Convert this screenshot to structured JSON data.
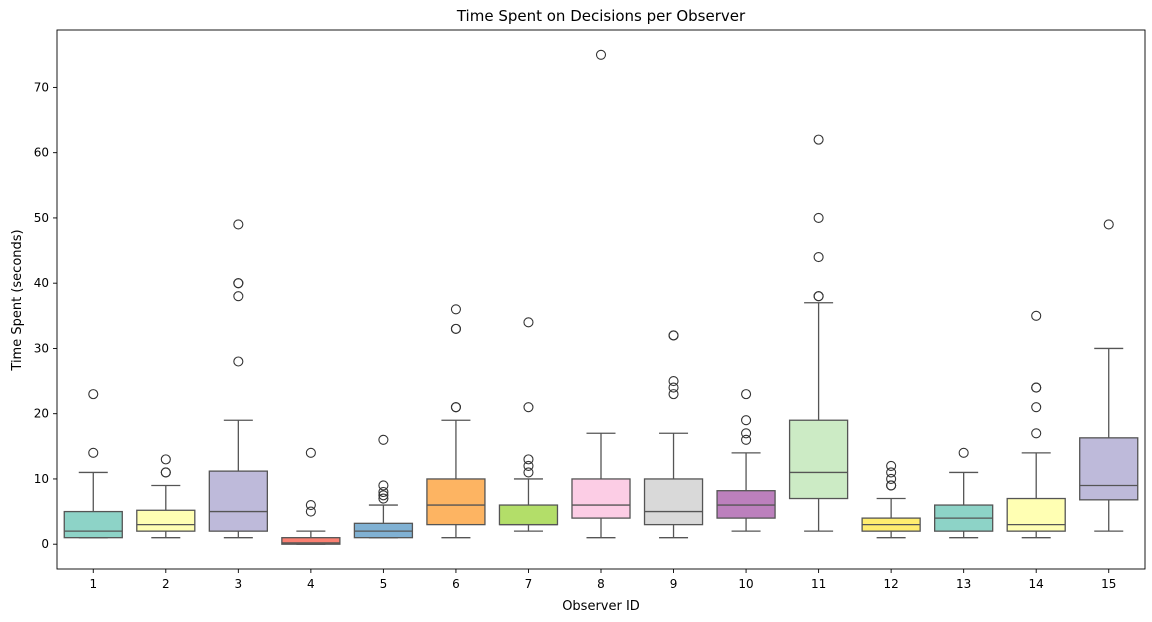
{
  "chart_data": {
    "type": "box",
    "title": "Time Spent on Decisions per Observer",
    "xlabel": "Observer ID",
    "ylabel": "Time Spent (seconds)",
    "ylim": [
      -3.8,
      78.8
    ],
    "yticks": [
      0,
      10,
      20,
      30,
      40,
      50,
      60,
      70
    ],
    "grid": false,
    "categories": [
      "1",
      "2",
      "3",
      "4",
      "5",
      "6",
      "7",
      "8",
      "9",
      "10",
      "11",
      "12",
      "13",
      "14",
      "15"
    ],
    "boxes": [
      {
        "category": "1",
        "whisker_low": 1,
        "q1": 1,
        "median": 2,
        "q3": 5,
        "whisker_high": 11,
        "outliers": [
          14,
          23
        ],
        "color": "#8dd3c7"
      },
      {
        "category": "2",
        "whisker_low": 1,
        "q1": 2,
        "median": 3,
        "q3": 5.2,
        "whisker_high": 9,
        "outliers": [
          11,
          11,
          13
        ],
        "color": "#ffffb3"
      },
      {
        "category": "3",
        "whisker_low": 1,
        "q1": 2,
        "median": 5,
        "q3": 11.2,
        "whisker_high": 19,
        "outliers": [
          28,
          38,
          40,
          40,
          49
        ],
        "color": "#bebada"
      },
      {
        "category": "4",
        "whisker_low": 0,
        "q1": 0,
        "median": 0.2,
        "q3": 1,
        "whisker_high": 2,
        "outliers": [
          5,
          6,
          14
        ],
        "color": "#fb8072"
      },
      {
        "category": "5",
        "whisker_low": 1,
        "q1": 1,
        "median": 2,
        "q3": 3.2,
        "whisker_high": 6,
        "outliers": [
          7,
          7.5,
          8,
          9,
          16
        ],
        "color": "#80b1d3"
      },
      {
        "category": "6",
        "whisker_low": 1,
        "q1": 3,
        "median": 6,
        "q3": 10,
        "whisker_high": 19,
        "outliers": [
          21,
          21,
          33,
          33,
          36
        ],
        "color": "#fdb462"
      },
      {
        "category": "7",
        "whisker_low": 2,
        "q1": 3,
        "median": 3,
        "q3": 6,
        "whisker_high": 10,
        "outliers": [
          11,
          12,
          13,
          21,
          34
        ],
        "color": "#b3de69"
      },
      {
        "category": "8",
        "whisker_low": 1,
        "q1": 4,
        "median": 6,
        "q3": 10,
        "whisker_high": 17,
        "outliers": [
          75
        ],
        "color": "#fccde5"
      },
      {
        "category": "9",
        "whisker_low": 1,
        "q1": 3,
        "median": 5,
        "q3": 10,
        "whisker_high": 17,
        "outliers": [
          23,
          24,
          25,
          32,
          32
        ],
        "color": "#d9d9d9"
      },
      {
        "category": "10",
        "whisker_low": 2,
        "q1": 4,
        "median": 6,
        "q3": 8.2,
        "whisker_high": 14,
        "outliers": [
          16,
          17,
          19,
          23
        ],
        "color": "#bc80bd"
      },
      {
        "category": "11",
        "whisker_low": 2,
        "q1": 7,
        "median": 11,
        "q3": 19,
        "whisker_high": 37,
        "outliers": [
          38,
          38,
          44,
          50,
          62
        ],
        "color": "#ccebc5"
      },
      {
        "category": "12",
        "whisker_low": 1,
        "q1": 2,
        "median": 3,
        "q3": 4,
        "whisker_high": 7,
        "outliers": [
          9,
          9,
          10,
          11,
          12
        ],
        "color": "#ffed6f"
      },
      {
        "category": "13",
        "whisker_low": 1,
        "q1": 2,
        "median": 4,
        "q3": 6,
        "whisker_high": 11,
        "outliers": [
          14
        ],
        "color": "#8dd3c7"
      },
      {
        "category": "14",
        "whisker_low": 1,
        "q1": 2,
        "median": 3,
        "q3": 7,
        "whisker_high": 14,
        "outliers": [
          17,
          21,
          24,
          24,
          35
        ],
        "color": "#ffffb3"
      },
      {
        "category": "15",
        "whisker_low": 2,
        "q1": 6.8,
        "median": 9,
        "q3": 16.3,
        "whisker_high": 30,
        "outliers": [
          49
        ],
        "color": "#bebada"
      }
    ]
  }
}
